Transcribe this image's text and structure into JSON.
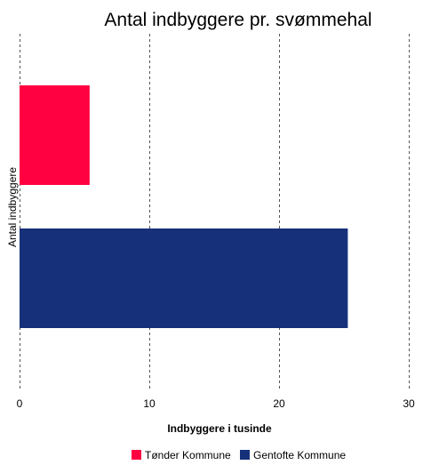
{
  "chart_data": {
    "type": "bar",
    "orientation": "horizontal",
    "title": "Antal indbyggere pr. svømmehal",
    "xlabel": "Indbyggere i tusinde",
    "ylabel": "Antal indbyggere",
    "xlim": [
      0,
      30
    ],
    "xticks": [
      0,
      10,
      20,
      30
    ],
    "grid": true,
    "legend_position": "bottom",
    "series": [
      {
        "name": "Tønder Kommune",
        "value": 5.4,
        "color": "#ff0040"
      },
      {
        "name": "Gentofte Kommune",
        "value": 25.3,
        "color": "#16307a"
      }
    ]
  }
}
